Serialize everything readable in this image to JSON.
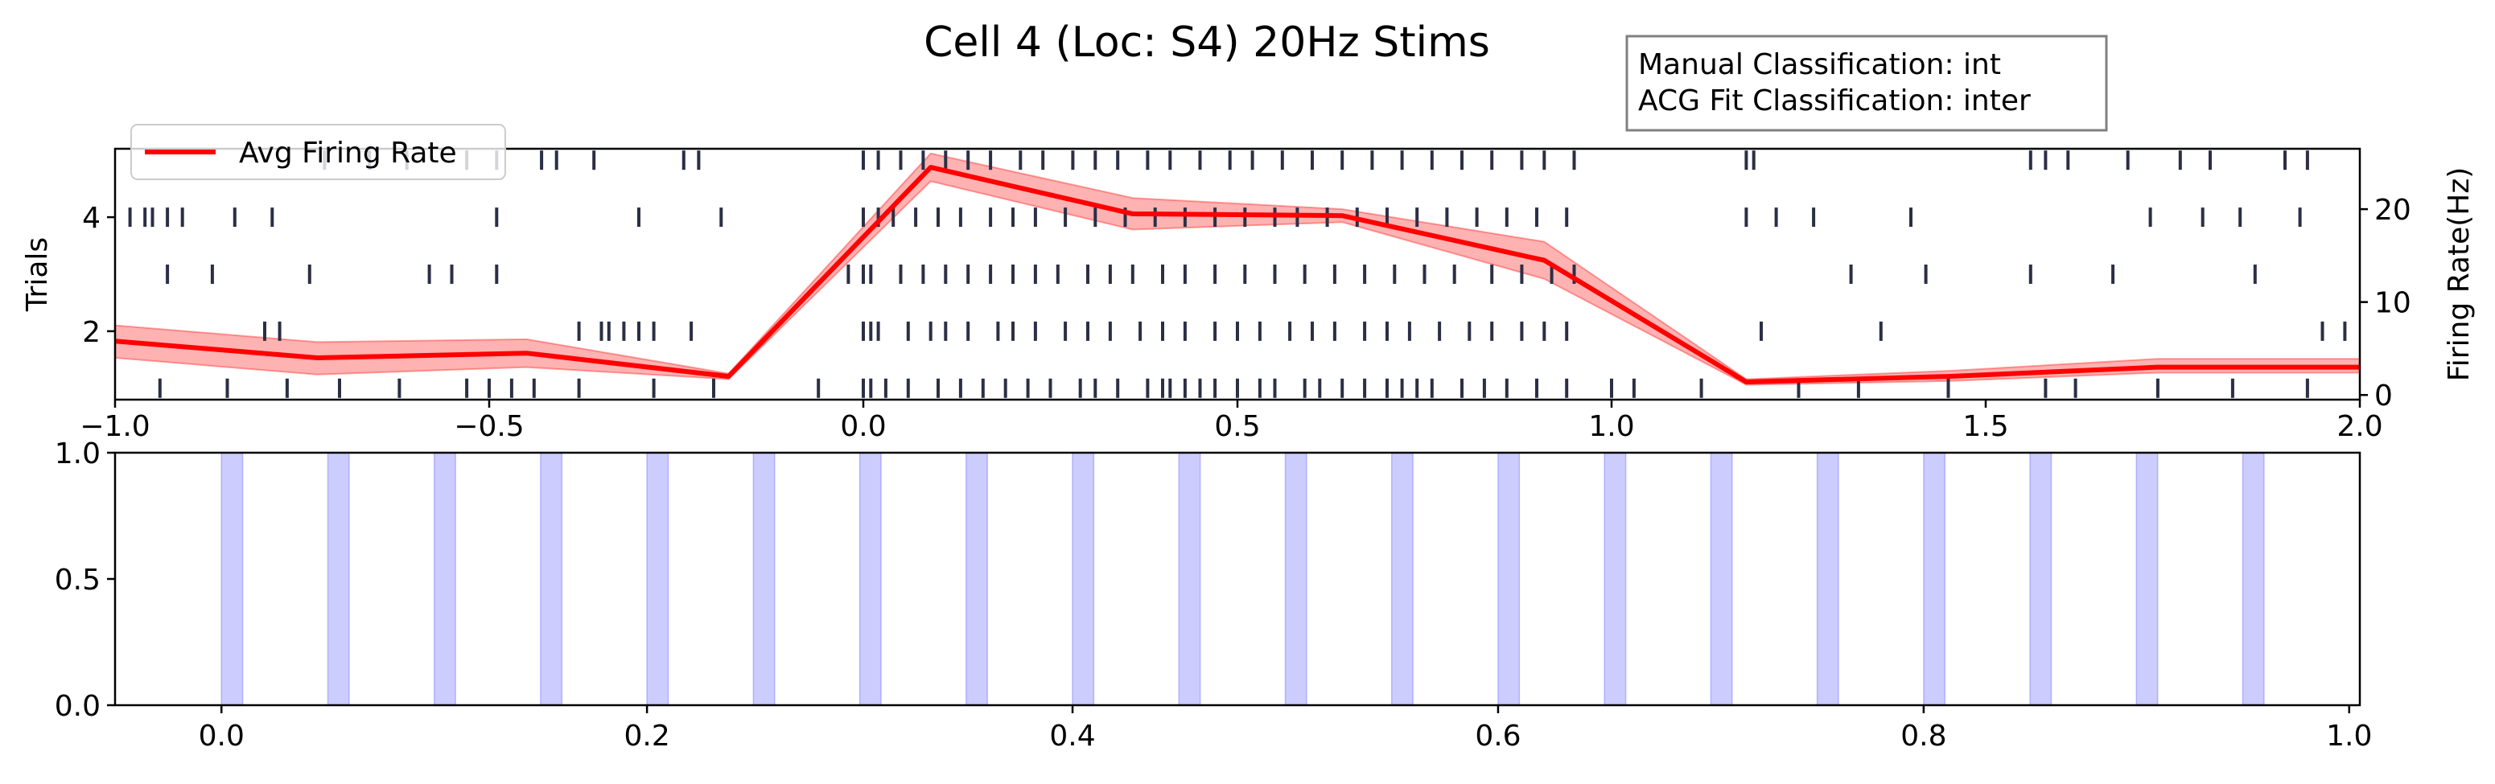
{
  "chart_data": [
    {
      "type": "scatter",
      "subtype": "raster-with-rate",
      "title": "Cell 4 (Loc: S4) 20Hz Stims",
      "xlim": [
        -1.0,
        2.0
      ],
      "ylim_left": [
        0.8,
        5.2
      ],
      "ylim_right": [
        -0.5,
        26.5
      ],
      "ylabel_left": "Trials",
      "ylabel_right": "Firing Rate(Hz)",
      "x_ticks": [
        -1.0,
        -0.5,
        0.0,
        0.5,
        1.0,
        1.5,
        2.0
      ],
      "x_tick_labels": [
        "−1.0",
        "−0.5",
        "0.0",
        "0.5",
        "1.0",
        "1.5",
        "2.0"
      ],
      "y_ticks_left": [
        2,
        4
      ],
      "y_ticks_right": [
        0,
        10,
        20
      ],
      "grid": false,
      "legend": {
        "placement": "top-left",
        "entries": [
          "Avg Firing Rate"
        ]
      },
      "annotation_box": {
        "line1": "Manual Classification: int",
        "line2": "ACG Fit Classification: inter"
      },
      "colors": {
        "spike": "#2b2f45",
        "rate_line": "#ff0000",
        "rate_band": "#ff0000"
      },
      "rate": {
        "name": "Avg Firing Rate",
        "x": [
          -1.0,
          -0.73,
          -0.45,
          -0.18,
          0.09,
          0.36,
          0.64,
          0.91,
          1.18,
          1.45,
          1.73,
          2.0
        ],
        "y": [
          5.8,
          4.0,
          4.5,
          2.0,
          24.5,
          19.5,
          19.3,
          14.5,
          1.4,
          2.0,
          3.0,
          3.0
        ],
        "lower": [
          4.0,
          2.2,
          3.0,
          1.7,
          23.0,
          17.8,
          18.6,
          12.5,
          1.1,
          1.5,
          2.4,
          2.4
        ],
        "upper": [
          7.5,
          5.7,
          6.0,
          2.3,
          26.0,
          21.2,
          20.0,
          16.5,
          1.7,
          2.6,
          3.9,
          3.9
        ]
      },
      "trials": [
        {
          "trial": 1,
          "spikes": [
            -0.94,
            -0.85,
            -0.77,
            -0.7,
            -0.62,
            -0.53,
            -0.5,
            -0.47,
            -0.44,
            -0.38,
            -0.28,
            -0.2,
            -0.06,
            0.0,
            0.01,
            0.03,
            0.06,
            0.1,
            0.13,
            0.16,
            0.19,
            0.22,
            0.25,
            0.29,
            0.31,
            0.34,
            0.38,
            0.4,
            0.41,
            0.43,
            0.45,
            0.47,
            0.5,
            0.53,
            0.55,
            0.59,
            0.61,
            0.64,
            0.67,
            0.7,
            0.72,
            0.74,
            0.76,
            0.8,
            0.83,
            0.86,
            0.9,
            0.94,
            1.0,
            1.03,
            1.12,
            1.25,
            1.33,
            1.45,
            1.58,
            1.62,
            1.73,
            1.83,
            1.93
          ]
        },
        {
          "trial": 2,
          "spikes": [
            -0.8,
            -0.78,
            -0.38,
            -0.35,
            -0.34,
            -0.32,
            -0.3,
            -0.28,
            -0.23,
            0.0,
            0.01,
            0.02,
            0.06,
            0.09,
            0.11,
            0.14,
            0.18,
            0.2,
            0.23,
            0.27,
            0.3,
            0.33,
            0.37,
            0.4,
            0.43,
            0.47,
            0.5,
            0.53,
            0.57,
            0.6,
            0.63,
            0.67,
            0.7,
            0.73,
            0.77,
            0.81,
            0.84,
            0.88,
            0.91,
            0.94,
            1.2,
            1.36,
            1.95,
            1.98
          ]
        },
        {
          "trial": 3,
          "spikes": [
            -0.93,
            -0.87,
            -0.74,
            -0.58,
            -0.55,
            -0.49,
            -0.02,
            0.0,
            0.01,
            0.05,
            0.08,
            0.11,
            0.14,
            0.17,
            0.2,
            0.23,
            0.26,
            0.3,
            0.33,
            0.36,
            0.4,
            0.43,
            0.47,
            0.51,
            0.55,
            0.59,
            0.63,
            0.67,
            0.71,
            0.75,
            0.79,
            0.84,
            0.88,
            0.92,
            0.95,
            1.32,
            1.42,
            1.56,
            1.67,
            1.86
          ]
        },
        {
          "trial": 4,
          "spikes": [
            -0.98,
            -0.96,
            -0.95,
            -0.93,
            -0.91,
            -0.84,
            -0.79,
            -0.49,
            -0.3,
            -0.19,
            0.0,
            0.02,
            0.04,
            0.07,
            0.1,
            0.13,
            0.17,
            0.2,
            0.23,
            0.27,
            0.31,
            0.35,
            0.39,
            0.43,
            0.47,
            0.51,
            0.55,
            0.58,
            0.62,
            0.66,
            0.7,
            0.74,
            0.78,
            0.82,
            0.86,
            0.9,
            0.94,
            1.18,
            1.22,
            1.27,
            1.4,
            1.72,
            1.79,
            1.84,
            1.92
          ]
        },
        {
          "trial": 5,
          "spikes": [
            -0.72,
            -0.66,
            -0.61,
            -0.53,
            -0.49,
            -0.43,
            -0.41,
            -0.36,
            -0.24,
            -0.22,
            0.0,
            0.02,
            0.05,
            0.08,
            0.11,
            0.14,
            0.17,
            0.21,
            0.24,
            0.28,
            0.31,
            0.34,
            0.38,
            0.41,
            0.45,
            0.49,
            0.52,
            0.56,
            0.6,
            0.64,
            0.68,
            0.72,
            0.76,
            0.8,
            0.84,
            0.88,
            0.91,
            0.95,
            1.18,
            1.19,
            1.56,
            1.58,
            1.61,
            1.69,
            1.76,
            1.8,
            1.9,
            1.93
          ]
        }
      ]
    },
    {
      "type": "bar",
      "subtype": "stimulus-pulses",
      "xlim": [
        -0.05,
        1.005
      ],
      "ylim": [
        0.0,
        1.0
      ],
      "x_ticks": [
        0.0,
        0.2,
        0.4,
        0.6,
        0.8,
        1.0
      ],
      "x_tick_labels": [
        "0.0",
        "0.2",
        "0.4",
        "0.6",
        "0.8",
        "1.0"
      ],
      "y_ticks": [
        0.0,
        0.5,
        1.0
      ],
      "y_tick_labels": [
        "0.0",
        "0.5",
        "1.0"
      ],
      "grid": false,
      "color": "#8080ff",
      "pulse_width": 0.01,
      "pulse_starts": [
        0.0,
        0.05,
        0.1,
        0.15,
        0.2,
        0.25,
        0.3,
        0.35,
        0.4,
        0.45,
        0.5,
        0.55,
        0.6,
        0.65,
        0.7,
        0.75,
        0.8,
        0.85,
        0.9,
        0.95
      ]
    }
  ]
}
